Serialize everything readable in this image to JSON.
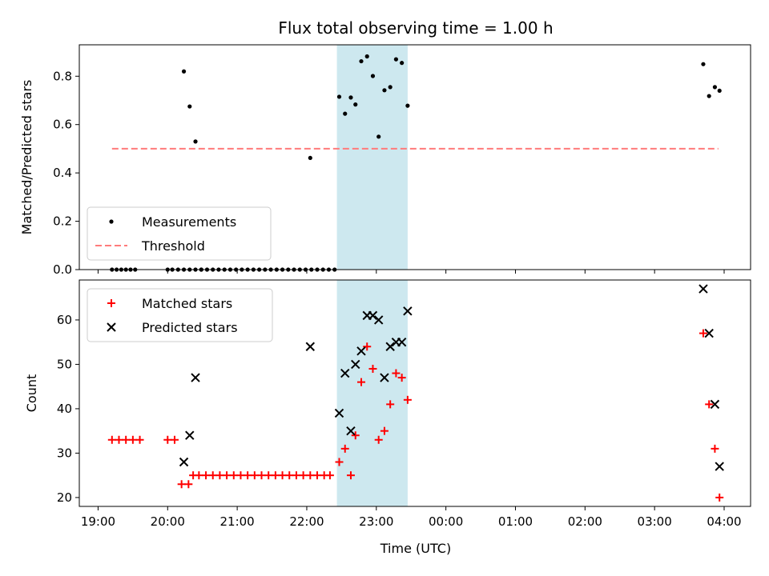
{
  "chart_data": [
    {
      "type": "scatter",
      "title": "Flux total observing time = 1.00 h",
      "xlabel": "",
      "ylabel": "Matched/Predicted stars",
      "ylim": [
        0,
        0.93
      ],
      "yticks": [
        0.0,
        0.2,
        0.4,
        0.6,
        0.8
      ],
      "ytick_labels": [
        "0.0",
        "0.2",
        "0.4",
        "0.6",
        "0.8"
      ],
      "xlim": [
        "19:00",
        "04:00"
      ],
      "shaded_span": [
        "22:26",
        "23:27"
      ],
      "shaded_color": "#cde8ef",
      "legend": {
        "placement": "lower-left",
        "entries": [
          "Measurements",
          "Threshold"
        ]
      },
      "threshold": {
        "name": "Threshold",
        "y": 0.5,
        "x_start": "19:12",
        "x_end": "03:55",
        "color": "#ff7b7b"
      },
      "series": [
        {
          "name": "Measurements",
          "color": "#000000",
          "x": [
            "19:12",
            "19:16",
            "19:20",
            "19:24",
            "19:28",
            "19:32",
            "20:00",
            "20:04",
            "20:09",
            "20:14",
            "20:19",
            "20:24",
            "20:29",
            "20:34",
            "20:39",
            "20:44",
            "20:49",
            "20:54",
            "20:59",
            "21:04",
            "21:09",
            "21:14",
            "21:19",
            "21:24",
            "21:29",
            "21:34",
            "21:39",
            "21:44",
            "21:49",
            "21:54",
            "21:59",
            "22:04",
            "22:09",
            "22:14",
            "22:19",
            "22:24",
            "20:14",
            "20:19",
            "20:24",
            "20:29",
            "22:03",
            "22:28",
            "22:33",
            "22:38",
            "22:42",
            "22:47",
            "22:52",
            "22:57",
            "23:02",
            "23:07",
            "23:12",
            "23:17",
            "23:22",
            "23:27",
            "03:42",
            "03:47",
            "03:52",
            "03:56"
          ],
          "y": [
            0,
            0,
            0,
            0,
            0,
            0,
            0,
            0,
            0,
            0,
            0,
            0,
            0,
            0,
            0,
            0,
            0,
            0,
            0,
            0,
            0,
            0,
            0,
            0,
            0,
            0,
            0,
            0,
            0,
            0,
            0,
            0,
            0,
            0,
            0,
            0,
            0.82,
            0.675,
            0.53,
            0.0,
            0.462,
            0.715,
            0.645,
            0.712,
            0.683,
            0.862,
            0.882,
            0.801,
            0.55,
            0.742,
            0.755,
            0.87,
            0.855,
            0.678,
            0.85,
            0.718,
            0.755,
            0.74
          ]
        }
      ]
    },
    {
      "type": "scatter",
      "title": "",
      "xlabel": "Time (UTC)",
      "ylabel": "Count",
      "ylim": [
        18,
        69
      ],
      "yticks": [
        20,
        30,
        40,
        50,
        60
      ],
      "ytick_labels": [
        "20",
        "30",
        "40",
        "50",
        "60"
      ],
      "xlim": [
        "19:00",
        "04:00"
      ],
      "xticks": [
        "19:00",
        "20:00",
        "21:00",
        "22:00",
        "23:00",
        "00:00",
        "01:00",
        "02:00",
        "03:00",
        "04:00"
      ],
      "shaded_span": [
        "22:26",
        "23:27"
      ],
      "shaded_color": "#cde8ef",
      "legend": {
        "placement": "upper-left",
        "entries": [
          "Matched stars",
          "Predicted stars"
        ]
      },
      "series": [
        {
          "name": "Matched stars",
          "color": "#ff0000",
          "marker": "+",
          "x": [
            "19:12",
            "19:18",
            "19:24",
            "19:30",
            "19:36",
            "20:00",
            "20:06",
            "20:12",
            "20:18",
            "20:22",
            "20:27",
            "20:33",
            "20:39",
            "20:45",
            "20:51",
            "20:57",
            "21:03",
            "21:09",
            "21:15",
            "21:21",
            "21:27",
            "21:33",
            "21:39",
            "21:45",
            "21:51",
            "21:57",
            "22:03",
            "22:09",
            "22:15",
            "22:20",
            "22:28",
            "22:33",
            "22:38",
            "22:42",
            "22:47",
            "22:52",
            "22:57",
            "23:02",
            "23:07",
            "23:12",
            "23:17",
            "23:22",
            "23:27",
            "03:42",
            "03:47",
            "03:52",
            "03:56"
          ],
          "y": [
            33,
            33,
            33,
            33,
            33,
            33,
            33,
            23,
            23,
            25,
            25,
            25,
            25,
            25,
            25,
            25,
            25,
            25,
            25,
            25,
            25,
            25,
            25,
            25,
            25,
            25,
            25,
            25,
            25,
            25,
            28,
            31,
            25,
            34,
            46,
            54,
            49,
            33,
            35,
            41,
            48,
            47,
            42,
            57,
            41,
            31,
            20
          ]
        },
        {
          "name": "Predicted stars",
          "color": "#000000",
          "marker": "x",
          "x": [
            "20:14",
            "20:19",
            "20:24",
            "22:03",
            "22:28",
            "22:33",
            "22:38",
            "22:42",
            "22:47",
            "22:52",
            "22:57",
            "23:02",
            "23:07",
            "23:12",
            "23:17",
            "23:22",
            "23:27",
            "03:42",
            "03:47",
            "03:52",
            "03:56"
          ],
          "y": [
            28,
            34,
            47,
            54,
            39,
            48,
            35,
            50,
            53,
            61,
            61,
            60,
            47,
            54,
            55,
            55,
            62,
            67,
            57,
            41,
            27
          ]
        }
      ]
    }
  ]
}
